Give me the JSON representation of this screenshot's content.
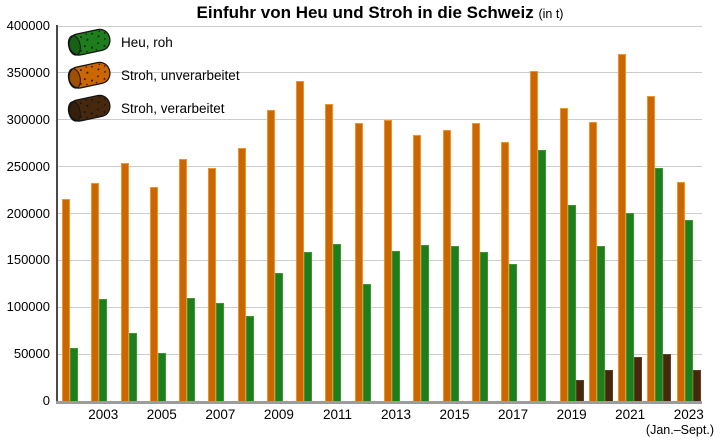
{
  "title": {
    "main": "Einfuhr von Heu und Stroh in die Schweiz",
    "unit": "(in t)"
  },
  "legend": [
    {
      "label": "Heu, roh",
      "icon": "green-hay-bale-icon",
      "color": "#1e7d1c"
    },
    {
      "label": "Stroh, unverarbeitet",
      "icon": "orange-straw-bale-icon",
      "color": "#cc6600"
    },
    {
      "label": "Stroh, verarbeitet",
      "icon": "brown-straw-bale-icon",
      "color": "#45280e"
    }
  ],
  "colors": {
    "gridline": "#cccccc",
    "y_axis": "#4a4a4a",
    "x_axis": "#9c9c9c",
    "orange": "#cc6600",
    "orange_border": "#e6962e",
    "green": "#1e7d1c",
    "green_border": "#3d9631",
    "brown": "#45280e",
    "brown_border": "#63401d"
  },
  "chart_data": {
    "type": "bar",
    "title": "Einfuhr von Heu und Stroh in die Schweiz",
    "unit": "t",
    "categories": [
      2002,
      2003,
      2004,
      2005,
      2006,
      2007,
      2008,
      2009,
      2010,
      2011,
      2012,
      2013,
      2014,
      2015,
      2016,
      2017,
      2018,
      2019,
      2020,
      2021,
      2022,
      2023
    ],
    "x_tick_labels": [
      "2003",
      "2005",
      "2007",
      "2009",
      "2011",
      "2013",
      "2015",
      "2017",
      "2019",
      "2021",
      "2023"
    ],
    "x_note": "(Jan.–Sept.)",
    "ylim": [
      0,
      400000
    ],
    "y_tick_step": 50000,
    "grid": true,
    "legend_position": "top-left",
    "series": [
      {
        "name": "Stroh, unverarbeitet",
        "color": "#cc6600",
        "border": "#e6962e",
        "values": [
          215000,
          233000,
          254000,
          228000,
          258000,
          249000,
          270000,
          310000,
          341000,
          317000,
          296000,
          300000,
          284000,
          289000,
          296000,
          276000,
          352000,
          312000,
          298000,
          370000,
          325000,
          234000
        ]
      },
      {
        "name": "Heu, roh",
        "color": "#1e7d1c",
        "border": "#3d9631",
        "values": [
          56000,
          109000,
          73000,
          51000,
          110000,
          105000,
          91000,
          137000,
          159000,
          167000,
          125000,
          160000,
          166000,
          165000,
          159000,
          146000,
          268000,
          209000,
          165000,
          200000,
          249000,
          193000
        ]
      },
      {
        "name": "Stroh, verarbeitet",
        "color": "#45280e",
        "border": "#63401d",
        "values": [
          null,
          null,
          null,
          null,
          null,
          null,
          null,
          null,
          null,
          null,
          null,
          null,
          null,
          null,
          null,
          null,
          null,
          22000,
          33000,
          47000,
          50000,
          33000
        ]
      }
    ]
  }
}
